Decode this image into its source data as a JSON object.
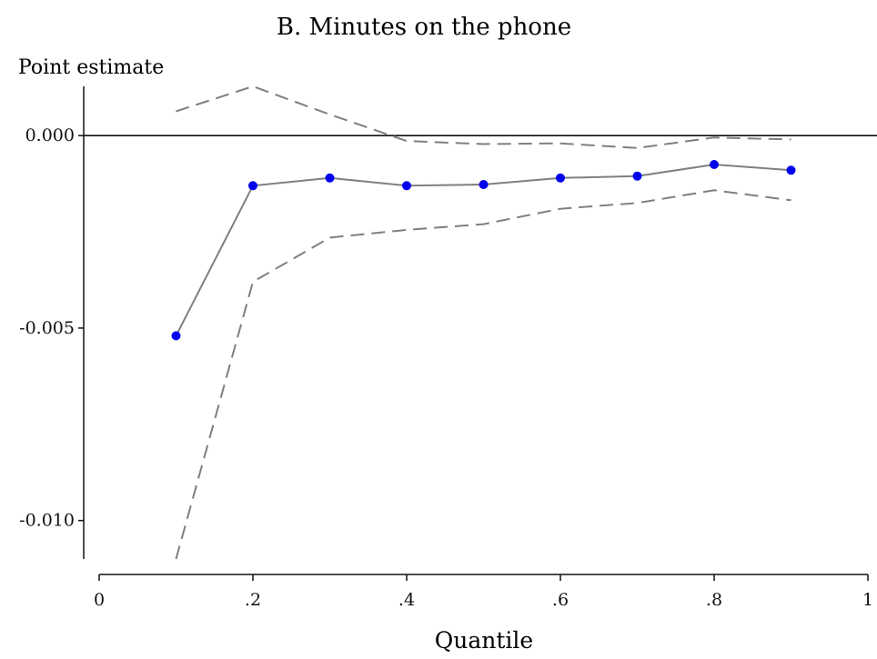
{
  "chart_data": {
    "type": "line",
    "title": "B. Minutes on the phone",
    "ylabel": "Point estimate",
    "xlabel": "Quantile",
    "x": [
      0.1,
      0.2,
      0.3,
      0.4,
      0.5,
      0.6,
      0.7,
      0.8,
      0.9
    ],
    "series": [
      {
        "role": "point-estimate",
        "style": "solid-with-markers",
        "values": [
          -0.0052,
          -0.0013,
          -0.0011,
          -0.0013,
          -0.00127,
          -0.0011,
          -0.00105,
          -0.00075,
          -0.0009
        ]
      },
      {
        "role": "upper-bound",
        "style": "dashed",
        "values": [
          0.00063,
          0.00128,
          0.00055,
          -0.00014,
          -0.00022,
          -0.0002,
          -0.00032,
          -5e-05,
          -0.0001
        ]
      },
      {
        "role": "lower-bound",
        "style": "dashed",
        "values": [
          -0.011,
          -0.0038,
          -0.00265,
          -0.00245,
          -0.0023,
          -0.0019,
          -0.00175,
          -0.00142,
          -0.00168
        ]
      }
    ],
    "xlim": [
      0,
      1
    ],
    "ylim": [
      -0.011,
      0.00128
    ],
    "xticks": [
      0,
      0.2,
      0.4,
      0.6,
      0.8,
      1.0
    ],
    "xtick_labels": [
      "0",
      ".2",
      ".4",
      ".6",
      ".8",
      "1"
    ],
    "yticks": [
      0.0,
      -0.005,
      -0.01
    ],
    "ytick_labels": [
      "0.000",
      "-0.005",
      "-0.010"
    ],
    "reference_line_y": 0.0,
    "grid": false,
    "colors": {
      "marker": "#0000ee",
      "line": "#7f7f7f",
      "axis": "#111111",
      "reference": "#111111"
    }
  }
}
